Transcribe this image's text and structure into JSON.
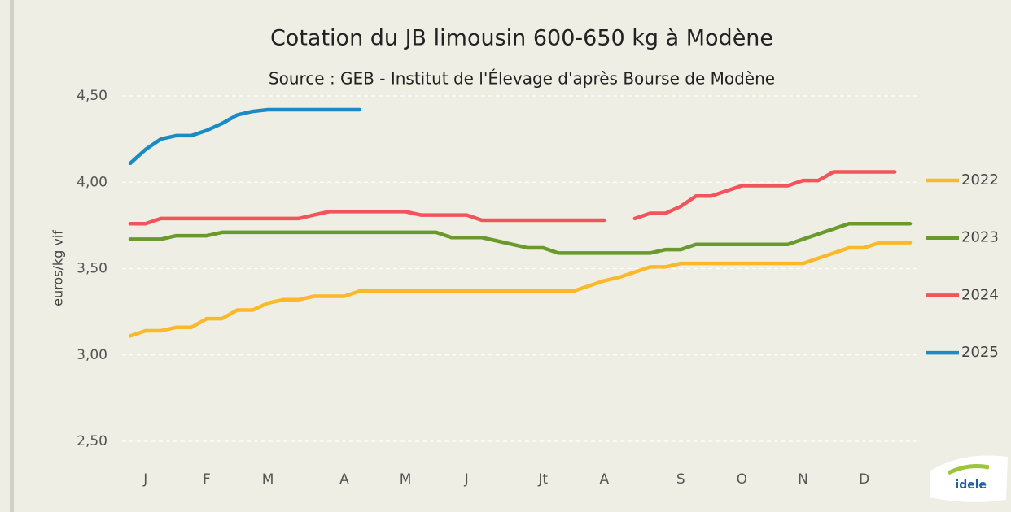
{
  "chart_data": {
    "type": "line",
    "title": "Cotation du JB limousin 600-650 kg à Modène",
    "subtitle": "Source : GEB - Institut de l'Élevage d'après Bourse de Modène",
    "y_label": "euros/kg vif",
    "logo": "idele",
    "categories": [
      null,
      "J",
      null,
      null,
      null,
      "F",
      null,
      null,
      null,
      "M",
      null,
      null,
      null,
      null,
      "A",
      null,
      null,
      null,
      "M",
      null,
      null,
      null,
      "J",
      null,
      null,
      null,
      null,
      "Jt",
      null,
      null,
      null,
      "A",
      null,
      null,
      null,
      null,
      "S",
      null,
      null,
      null,
      "O",
      null,
      null,
      null,
      "N",
      null,
      null,
      null,
      "D",
      null,
      null,
      null
    ],
    "ylim": [
      2.5,
      4.5
    ],
    "yticks": [
      {
        "value": 2.5,
        "label": "2,50"
      },
      {
        "value": 3,
        "label": "3,00"
      },
      {
        "value": 3.5,
        "label": "3,50"
      },
      {
        "value": 4,
        "label": "4,00"
      },
      {
        "value": 4.5,
        "label": "4,50"
      }
    ],
    "grid": true,
    "legend": "right",
    "series": [
      {
        "name": "2022",
        "color": "#fbb829",
        "values": [
          3.11,
          3.14,
          3.14,
          3.16,
          3.16,
          3.21,
          3.21,
          3.26,
          3.26,
          3.3,
          3.32,
          3.32,
          3.34,
          3.34,
          3.34,
          3.37,
          3.37,
          3.37,
          3.37,
          3.37,
          3.37,
          3.37,
          3.37,
          3.37,
          3.37,
          3.37,
          3.37,
          3.37,
          3.37,
          3.37,
          3.4,
          3.43,
          3.45,
          3.48,
          3.51,
          3.51,
          3.53,
          3.53,
          3.53,
          3.53,
          3.53,
          3.53,
          3.53,
          3.53,
          3.53,
          3.56,
          3.59,
          3.62,
          3.62,
          3.65,
          3.65,
          3.65
        ]
      },
      {
        "name": "2023",
        "color": "#6a9a2e",
        "values": [
          3.67,
          3.67,
          3.67,
          3.69,
          3.69,
          3.69,
          3.71,
          3.71,
          3.71,
          3.71,
          3.71,
          3.71,
          3.71,
          3.71,
          3.71,
          3.71,
          3.71,
          3.71,
          3.71,
          3.71,
          3.71,
          3.68,
          3.68,
          3.68,
          3.66,
          3.64,
          3.62,
          3.62,
          3.59,
          3.59,
          3.59,
          3.59,
          3.59,
          3.59,
          3.59,
          3.61,
          3.61,
          3.64,
          3.64,
          3.64,
          3.64,
          3.64,
          3.64,
          3.64,
          3.67,
          3.7,
          3.73,
          3.76,
          3.76,
          3.76,
          3.76,
          3.76
        ]
      },
      {
        "name": "2024",
        "color": "#f2545b",
        "values": [
          3.76,
          3.76,
          3.79,
          3.79,
          3.79,
          3.79,
          3.79,
          3.79,
          3.79,
          3.79,
          3.79,
          3.79,
          3.81,
          3.83,
          3.83,
          3.83,
          3.83,
          3.83,
          3.83,
          3.81,
          3.81,
          3.81,
          3.81,
          3.78,
          3.78,
          3.78,
          3.78,
          3.78,
          3.78,
          3.78,
          3.78,
          3.78,
          null,
          3.79,
          3.82,
          3.82,
          3.86,
          3.92,
          3.92,
          3.95,
          3.98,
          3.98,
          3.98,
          3.98,
          4.01,
          4.01,
          4.06,
          4.06,
          4.06,
          4.06,
          4.06,
          null
        ]
      },
      {
        "name": "2025",
        "color": "#1a8bc5",
        "values": [
          4.11,
          4.19,
          4.25,
          4.27,
          4.27,
          4.3,
          4.34,
          4.39,
          4.41,
          4.42,
          4.42,
          4.42,
          4.42,
          4.42,
          4.42,
          4.42,
          null,
          null,
          null,
          null,
          null,
          null,
          null,
          null,
          null,
          null,
          null,
          null,
          null,
          null,
          null,
          null,
          null,
          null,
          null,
          null,
          null,
          null,
          null,
          null,
          null,
          null,
          null,
          null,
          null,
          null,
          null,
          null,
          null,
          null,
          null,
          null
        ]
      }
    ]
  }
}
